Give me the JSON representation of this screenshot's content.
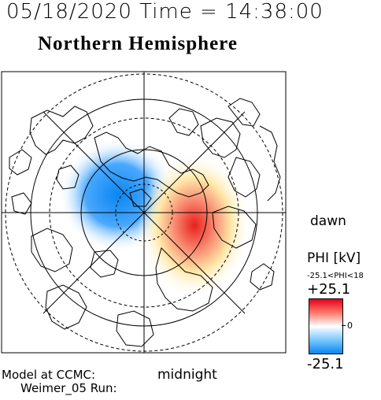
{
  "header": {
    "datetime": "05/18/2020 Time = 14:38:00",
    "title": "Northern Hemisphere"
  },
  "labels": {
    "dawn": "dawn",
    "midnight": "midnight"
  },
  "colorbar": {
    "quantity": "PHI [kV]",
    "range_text": "-25.1<PHI<18",
    "max_label": "+25.1",
    "zero_label": "0",
    "min_label": "-25.1",
    "colors": {
      "positive": "#e5001a",
      "zero": "#ffffff",
      "negative": "#0a86f0"
    }
  },
  "footer": {
    "model_label": "Model at CCMC:",
    "run_label": "Weimer_05 Run:"
  }
}
